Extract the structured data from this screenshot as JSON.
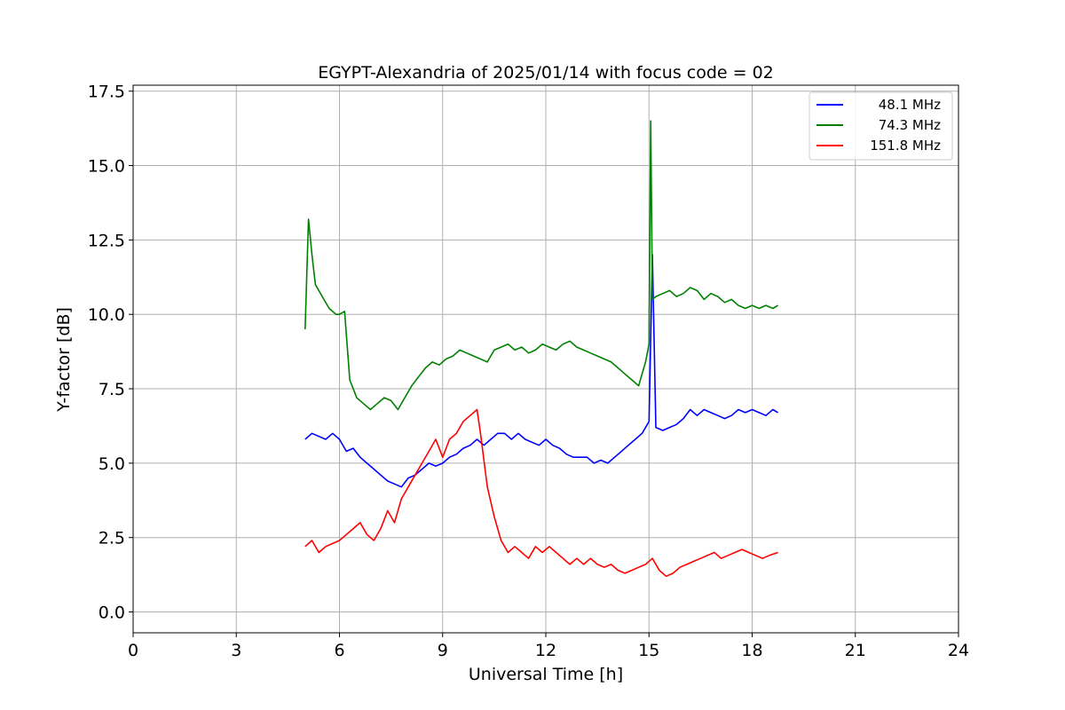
{
  "chart_data": {
    "type": "line",
    "title": "EGYPT-Alexandria of 2025/01/14 with focus code = 02",
    "xlabel": "Universal Time [h]",
    "ylabel": "Y-factor [dB]",
    "xlim": [
      0,
      24
    ],
    "ylim": [
      -0.7,
      17.7
    ],
    "x_ticks": [
      0,
      3,
      6,
      9,
      12,
      15,
      18,
      21,
      24
    ],
    "x_tick_labels": [
      "0",
      "3",
      "6",
      "9",
      "12",
      "15",
      "18",
      "21",
      "24"
    ],
    "y_ticks": [
      0.0,
      2.5,
      5.0,
      7.5,
      10.0,
      12.5,
      15.0,
      17.5
    ],
    "y_tick_labels": [
      "0.0",
      "2.5",
      "5.0",
      "7.5",
      "10.0",
      "12.5",
      "15.0",
      "17.5"
    ],
    "grid": true,
    "legend_position": "top-right",
    "series": [
      {
        "name": "48.1 MHz",
        "color": "#0000ff",
        "x": [
          5.0,
          5.2,
          5.4,
          5.6,
          5.8,
          6.0,
          6.2,
          6.4,
          6.6,
          6.8,
          7.0,
          7.2,
          7.4,
          7.6,
          7.8,
          8.0,
          8.2,
          8.4,
          8.6,
          8.8,
          9.0,
          9.2,
          9.4,
          9.6,
          9.8,
          10.0,
          10.2,
          10.4,
          10.6,
          10.8,
          11.0,
          11.2,
          11.4,
          11.6,
          11.8,
          12.0,
          12.2,
          12.4,
          12.6,
          12.8,
          13.0,
          13.2,
          13.4,
          13.6,
          13.8,
          14.0,
          14.2,
          14.4,
          14.6,
          14.8,
          15.0,
          15.1,
          15.2,
          15.4,
          15.6,
          15.8,
          16.0,
          16.2,
          16.4,
          16.6,
          16.8,
          17.0,
          17.2,
          17.4,
          17.6,
          17.8,
          18.0,
          18.2,
          18.4,
          18.6,
          18.75
        ],
        "y": [
          5.8,
          6.0,
          5.9,
          5.8,
          6.0,
          5.8,
          5.4,
          5.5,
          5.2,
          5.0,
          4.8,
          4.6,
          4.4,
          4.3,
          4.2,
          4.5,
          4.6,
          4.8,
          5.0,
          4.9,
          5.0,
          5.2,
          5.3,
          5.5,
          5.6,
          5.8,
          5.6,
          5.8,
          6.0,
          6.0,
          5.8,
          6.0,
          5.8,
          5.7,
          5.6,
          5.8,
          5.6,
          5.5,
          5.3,
          5.2,
          5.2,
          5.2,
          5.0,
          5.1,
          5.0,
          5.2,
          5.4,
          5.6,
          5.8,
          6.0,
          6.4,
          12.0,
          6.2,
          6.1,
          6.2,
          6.3,
          6.5,
          6.8,
          6.6,
          6.8,
          6.7,
          6.6,
          6.5,
          6.6,
          6.8,
          6.7,
          6.8,
          6.7,
          6.6,
          6.8,
          6.7
        ]
      },
      {
        "name": "74.3 MHz",
        "color": "#008000",
        "x": [
          5.0,
          5.1,
          5.2,
          5.3,
          5.5,
          5.7,
          5.9,
          6.0,
          6.15,
          6.3,
          6.5,
          6.7,
          6.9,
          7.1,
          7.3,
          7.5,
          7.7,
          7.9,
          8.1,
          8.3,
          8.5,
          8.7,
          8.9,
          9.1,
          9.3,
          9.5,
          9.7,
          9.9,
          10.1,
          10.3,
          10.5,
          10.7,
          10.9,
          11.1,
          11.3,
          11.5,
          11.7,
          11.9,
          12.1,
          12.3,
          12.5,
          12.7,
          12.9,
          13.1,
          13.3,
          13.5,
          13.7,
          13.9,
          14.1,
          14.3,
          14.5,
          14.7,
          14.9,
          15.0,
          15.05,
          15.1,
          15.2,
          15.4,
          15.6,
          15.8,
          16.0,
          16.2,
          16.4,
          16.6,
          16.8,
          17.0,
          17.2,
          17.4,
          17.6,
          17.8,
          18.0,
          18.2,
          18.4,
          18.6,
          18.75
        ],
        "y": [
          9.5,
          13.2,
          12.0,
          11.0,
          10.6,
          10.2,
          10.0,
          10.0,
          10.1,
          7.8,
          7.2,
          7.0,
          6.8,
          7.0,
          7.2,
          7.1,
          6.8,
          7.2,
          7.6,
          7.9,
          8.2,
          8.4,
          8.3,
          8.5,
          8.6,
          8.8,
          8.7,
          8.6,
          8.5,
          8.4,
          8.8,
          8.9,
          9.0,
          8.8,
          8.9,
          8.7,
          8.8,
          9.0,
          8.9,
          8.8,
          9.0,
          9.1,
          8.9,
          8.8,
          8.7,
          8.6,
          8.5,
          8.4,
          8.2,
          8.0,
          7.8,
          7.6,
          8.4,
          9.0,
          16.5,
          10.5,
          10.6,
          10.7,
          10.8,
          10.6,
          10.7,
          10.9,
          10.8,
          10.5,
          10.7,
          10.6,
          10.4,
          10.5,
          10.3,
          10.2,
          10.3,
          10.2,
          10.3,
          10.2,
          10.3
        ]
      },
      {
        "name": "151.8 MHz",
        "color": "#ff0000",
        "x": [
          5.0,
          5.2,
          5.4,
          5.6,
          5.8,
          6.0,
          6.2,
          6.4,
          6.6,
          6.8,
          7.0,
          7.2,
          7.4,
          7.6,
          7.8,
          8.0,
          8.2,
          8.4,
          8.6,
          8.8,
          9.0,
          9.2,
          9.4,
          9.6,
          9.8,
          10.0,
          10.1,
          10.3,
          10.5,
          10.7,
          10.9,
          11.1,
          11.3,
          11.5,
          11.7,
          11.9,
          12.1,
          12.3,
          12.5,
          12.7,
          12.9,
          13.1,
          13.3,
          13.5,
          13.7,
          13.9,
          14.1,
          14.3,
          14.5,
          14.7,
          14.9,
          15.1,
          15.3,
          15.5,
          15.7,
          15.9,
          16.1,
          16.3,
          16.5,
          16.7,
          16.9,
          17.1,
          17.3,
          17.5,
          17.7,
          17.9,
          18.1,
          18.3,
          18.5,
          18.75
        ],
        "y": [
          2.2,
          2.4,
          2.0,
          2.2,
          2.3,
          2.4,
          2.6,
          2.8,
          3.0,
          2.6,
          2.4,
          2.8,
          3.4,
          3.0,
          3.8,
          4.2,
          4.6,
          5.0,
          5.4,
          5.8,
          5.2,
          5.8,
          6.0,
          6.4,
          6.6,
          6.8,
          6.0,
          4.2,
          3.2,
          2.4,
          2.0,
          2.2,
          2.0,
          1.8,
          2.2,
          2.0,
          2.2,
          2.0,
          1.8,
          1.6,
          1.8,
          1.6,
          1.8,
          1.6,
          1.5,
          1.6,
          1.4,
          1.3,
          1.4,
          1.5,
          1.6,
          1.8,
          1.4,
          1.2,
          1.3,
          1.5,
          1.6,
          1.7,
          1.8,
          1.9,
          2.0,
          1.8,
          1.9,
          2.0,
          2.1,
          2.0,
          1.9,
          1.8,
          1.9,
          2.0
        ]
      }
    ]
  }
}
